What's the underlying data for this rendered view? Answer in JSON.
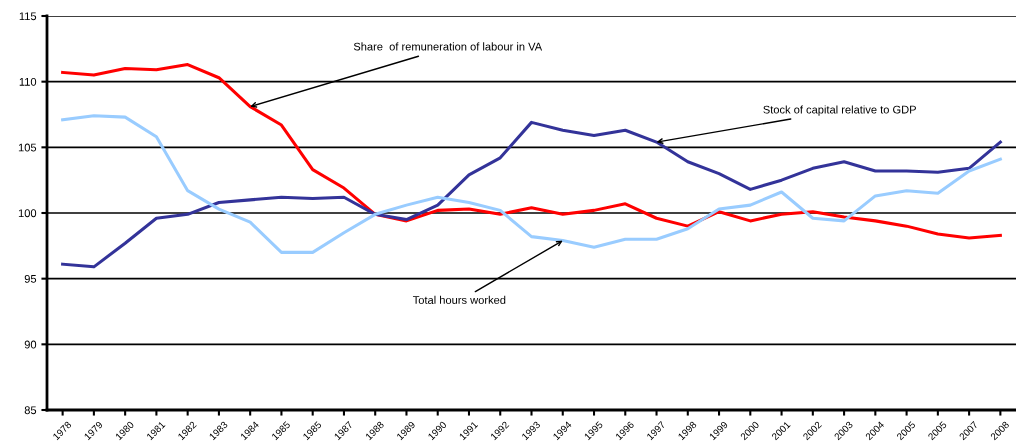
{
  "chart_data": {
    "type": "line",
    "categories": [
      "1978",
      "1979",
      "1980",
      "1981",
      "1982",
      "1983",
      "1984",
      "1985",
      "1985",
      "1987",
      "1988",
      "1989",
      "1990",
      "1991",
      "1992",
      "1993",
      "1994",
      "1995",
      "1996",
      "1997",
      "1998",
      "1999",
      "2000",
      "2001",
      "2002",
      "2003",
      "2004",
      "2005",
      "2005",
      "2007",
      "2008"
    ],
    "series": [
      {
        "color": "#ff0000",
        "values": [
          110.7,
          110.5,
          111.0,
          110.9,
          111.3,
          110.3,
          108.1,
          106.7,
          103.3,
          101.9,
          99.9,
          99.4,
          100.2,
          100.3,
          99.9,
          100.4,
          99.9,
          100.2,
          100.7,
          99.6,
          99.0,
          100.1,
          99.4,
          99.9,
          100.1,
          99.7,
          99.4,
          99.0,
          98.4,
          98.1,
          98.3
        ]
      },
      {
        "color": "#333399",
        "values": [
          96.1,
          95.9,
          97.7,
          99.6,
          99.9,
          100.8,
          101.0,
          101.2,
          101.1,
          101.2,
          99.9,
          99.5,
          100.6,
          102.9,
          104.2,
          106.9,
          106.3,
          105.9,
          106.3,
          105.4,
          103.9,
          103.0,
          101.8,
          102.5,
          103.4,
          103.9,
          103.2,
          103.2,
          103.1,
          103.4,
          105.4
        ]
      },
      {
        "color": "#99ccff",
        "values": [
          107.1,
          107.4,
          107.3,
          105.8,
          101.7,
          100.3,
          99.3,
          97.0,
          97.0,
          98.5,
          99.9,
          100.6,
          101.2,
          100.8,
          100.2,
          98.2,
          97.9,
          97.4,
          98.0,
          98.0,
          98.8,
          100.3,
          100.6,
          101.6,
          99.6,
          99.4,
          101.3,
          101.7,
          101.5,
          103.2,
          104.1
        ]
      }
    ],
    "annotations": [
      {
        "text": "Share  of remuneration of labour in VA",
        "x": "1984",
        "y": 108.1
      },
      {
        "text": "Stock of capital relative to GDP",
        "x": "1997",
        "y": 105.4
      },
      {
        "text": "Total hours worked",
        "x": "1994",
        "y": 97.9
      }
    ],
    "ylim": [
      85,
      115
    ],
    "yticks": [
      85,
      90,
      95,
      100,
      105,
      110,
      115
    ],
    "grid": "y",
    "marker": "none",
    "line_style": "solid"
  }
}
